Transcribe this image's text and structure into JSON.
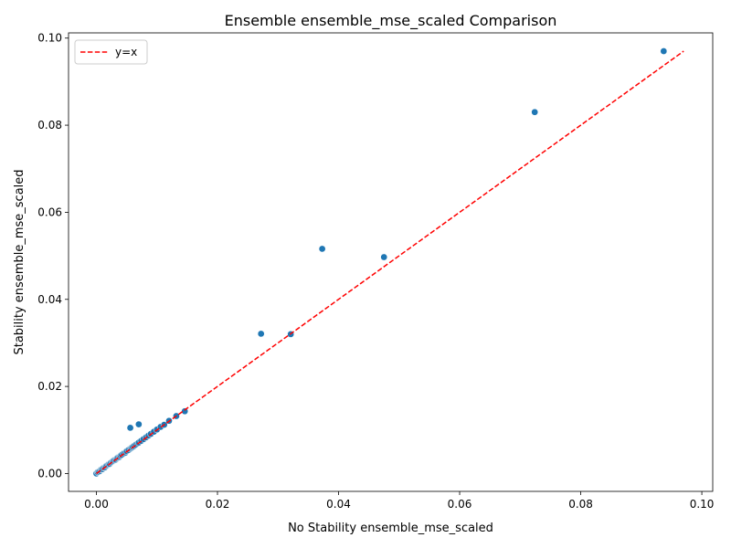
{
  "chart_data": {
    "type": "scatter",
    "title": "Ensemble ensemble_mse_scaled Comparison",
    "xlabel": "No Stability ensemble_mse_scaled",
    "ylabel": "Stability ensemble_mse_scaled",
    "xlim": [
      -0.0046,
      0.1018
    ],
    "ylim": [
      -0.0041,
      0.1012
    ],
    "xticks": [
      "0.00",
      "0.02",
      "0.04",
      "0.06",
      "0.08",
      "0.10"
    ],
    "xtick_values": [
      0,
      0.02,
      0.04,
      0.06,
      0.08,
      0.1
    ],
    "yticks": [
      "0.00",
      "0.02",
      "0.04",
      "0.06",
      "0.08",
      "0.10"
    ],
    "ytick_values": [
      0,
      0.02,
      0.04,
      0.06,
      0.08,
      0.1
    ],
    "grid": false,
    "legend_position": "top-left",
    "legend": [
      "y=x"
    ],
    "reference_line": {
      "name": "y=x",
      "from": 0,
      "to": 0.097,
      "color": "#ff0000",
      "style": "dashed"
    },
    "point_color": "#1f77b4",
    "series": [
      {
        "x": [
          0.0,
          0.0002,
          0.0004,
          0.0006,
          0.0008,
          0.001,
          0.0012,
          0.0014,
          0.0016,
          0.0018,
          0.002,
          0.0022,
          0.0024,
          0.0026,
          0.0028,
          0.003,
          0.0032,
          0.0034,
          0.0036,
          0.0038,
          0.004,
          0.0042,
          0.0045,
          0.0048,
          0.005,
          0.0053,
          0.0056,
          0.0058,
          0.006,
          0.0062,
          0.0065,
          0.0068,
          0.007,
          0.0074,
          0.0078,
          0.0082,
          0.0086,
          0.009,
          0.0095,
          0.01,
          0.0106,
          0.0112,
          0.012,
          0.0132,
          0.0146,
          0.0056,
          0.007,
          0.0272,
          0.0321,
          0.0373,
          0.0475,
          0.0724,
          0.0937
        ],
        "y": [
          0.0,
          0.0003,
          0.0004,
          0.0006,
          0.0009,
          0.001,
          0.0013,
          0.0014,
          0.0017,
          0.0019,
          0.0021,
          0.0022,
          0.0025,
          0.0027,
          0.0029,
          0.0031,
          0.0032,
          0.0035,
          0.0037,
          0.0038,
          0.0041,
          0.0043,
          0.0046,
          0.0048,
          0.0051,
          0.0054,
          0.0057,
          0.0059,
          0.0061,
          0.0063,
          0.0066,
          0.0069,
          0.0071,
          0.0075,
          0.0079,
          0.0083,
          0.0087,
          0.0091,
          0.0096,
          0.0101,
          0.0107,
          0.0112,
          0.0121,
          0.0132,
          0.0143,
          0.0105,
          0.0113,
          0.0321,
          0.032,
          0.0516,
          0.0497,
          0.083,
          0.097
        ]
      }
    ]
  }
}
